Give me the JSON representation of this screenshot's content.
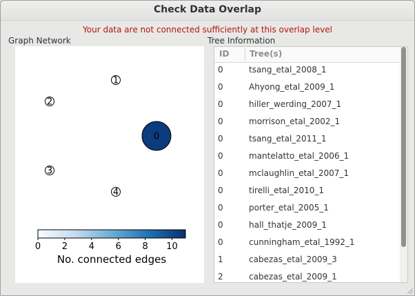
{
  "window": {
    "title": "Check Data Overlap",
    "warning": "Your data are not connected sufficiently at this overlap level"
  },
  "graph": {
    "section_label": "Graph Network",
    "nodes": [
      {
        "label": "0",
        "edges": 10,
        "color": "#0b3c7d"
      },
      {
        "label": "1",
        "edges": 0
      },
      {
        "label": "2",
        "edges": 0
      },
      {
        "label": "3",
        "edges": 0
      },
      {
        "label": "4",
        "edges": 0
      }
    ],
    "colorbar": {
      "label": "No. connected edges",
      "ticks": [
        "0",
        "2",
        "4",
        "6",
        "8",
        "10"
      ],
      "range": [
        0,
        11
      ],
      "colors": [
        "#f7fbff",
        "#c6dbef",
        "#6baed6",
        "#2171b5",
        "#08306b"
      ]
    }
  },
  "table": {
    "section_label": "Tree Information",
    "headers": {
      "id": "ID",
      "trees": "Tree(s)"
    },
    "rows": [
      {
        "id": "0",
        "tree": "tsang_etal_2008_1"
      },
      {
        "id": "0",
        "tree": "Ahyong_etal_2009_1"
      },
      {
        "id": "0",
        "tree": "hiller_werding_2007_1"
      },
      {
        "id": "0",
        "tree": "morrison_etal_2002_1"
      },
      {
        "id": "0",
        "tree": "tsang_etal_2011_1"
      },
      {
        "id": "0",
        "tree": "mantelatto_etal_2006_1"
      },
      {
        "id": "0",
        "tree": "mclaughlin_etal_2007_1"
      },
      {
        "id": "0",
        "tree": "tirelli_etal_2010_1"
      },
      {
        "id": "0",
        "tree": "porter_etal_2005_1"
      },
      {
        "id": "0",
        "tree": "hall_thatje_2009_1"
      },
      {
        "id": "0",
        "tree": "cunningham_etal_1992_1"
      },
      {
        "id": "1",
        "tree": "cabezas_etal_2009_3"
      },
      {
        "id": "2",
        "tree": "cabezas_etal_2009_1"
      }
    ]
  }
}
